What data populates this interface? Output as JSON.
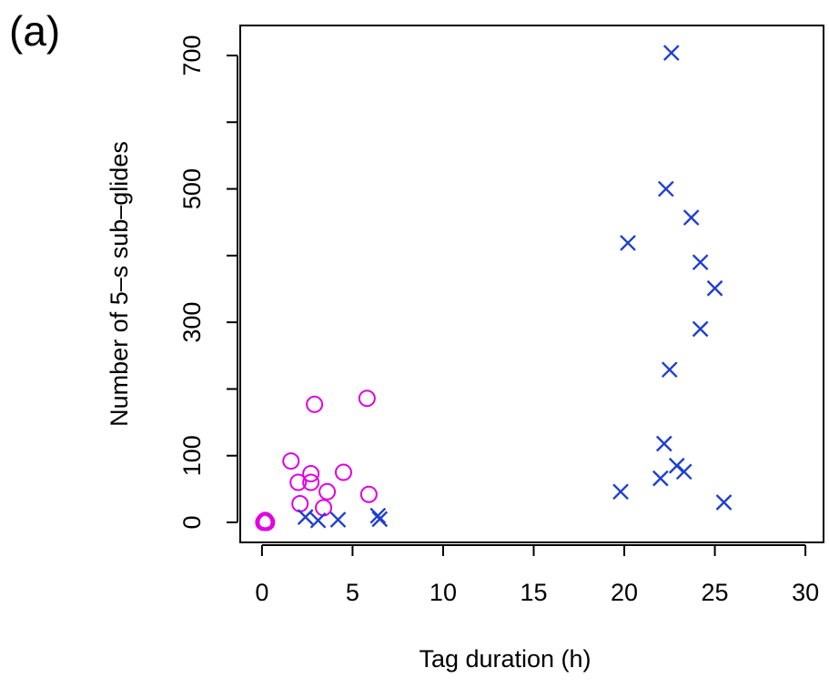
{
  "panel_label": "(a)",
  "colors": {
    "series_circle": "#e000e0",
    "series_cross": "#1f3fcf",
    "axis": "#000000"
  },
  "chart_data": {
    "type": "scatter",
    "xlabel": "Tag duration (h)",
    "ylabel": "Number of 5–s sub–glides",
    "xlim": [
      -1.2,
      31
    ],
    "ylim": [
      -30,
      745
    ],
    "x_ticks": [
      0,
      5,
      10,
      15,
      20,
      25,
      30
    ],
    "y_ticks": [
      0,
      100,
      200,
      300,
      400,
      500,
      600,
      700
    ],
    "y_tick_labels": [
      "0",
      "100",
      "",
      "300",
      "",
      "500",
      "",
      "700"
    ],
    "grid": false,
    "legend": "none",
    "series": [
      {
        "marker": "circle",
        "color": "#e000e0",
        "points": [
          [
            0.1,
            0
          ],
          [
            0.15,
            2
          ],
          [
            0.2,
            0
          ],
          [
            0.22,
            1
          ],
          [
            0.25,
            0
          ],
          [
            0.18,
            3
          ],
          [
            1.6,
            92
          ],
          [
            2.0,
            60
          ],
          [
            2.1,
            28
          ],
          [
            2.7,
            73
          ],
          [
            2.7,
            60
          ],
          [
            2.9,
            177
          ],
          [
            3.4,
            22
          ],
          [
            3.6,
            46
          ],
          [
            4.5,
            75
          ],
          [
            5.8,
            186
          ],
          [
            5.9,
            42
          ]
        ]
      },
      {
        "marker": "cross",
        "color": "#1f3fcf",
        "points": [
          [
            2.4,
            8
          ],
          [
            3.1,
            3
          ],
          [
            4.2,
            4
          ],
          [
            6.4,
            10
          ],
          [
            6.5,
            5
          ],
          [
            19.8,
            46
          ],
          [
            20.2,
            419
          ],
          [
            22.0,
            66
          ],
          [
            22.2,
            118
          ],
          [
            22.3,
            500
          ],
          [
            22.5,
            229
          ],
          [
            22.6,
            704
          ],
          [
            22.9,
            85
          ],
          [
            23.3,
            76
          ],
          [
            23.7,
            457
          ],
          [
            24.2,
            390
          ],
          [
            24.2,
            290
          ],
          [
            25.0,
            351
          ],
          [
            25.5,
            30
          ]
        ]
      }
    ]
  }
}
